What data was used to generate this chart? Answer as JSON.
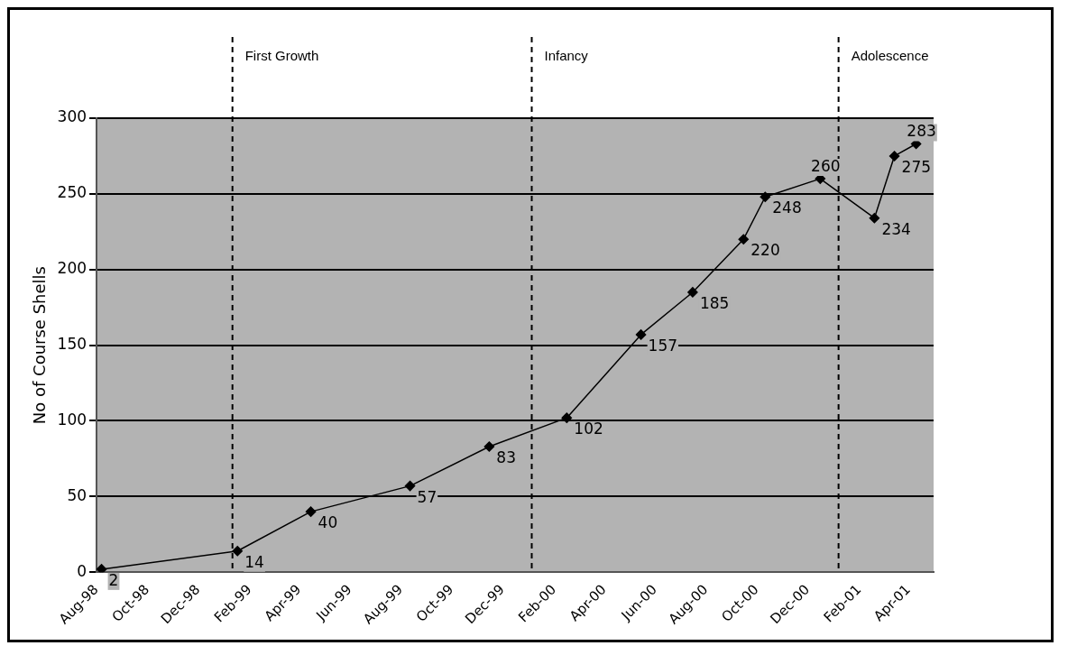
{
  "chart_data": {
    "type": "line",
    "ylabel": "No of Course Shells",
    "x": [
      "1998-08-07",
      "1999-01-17",
      "1999-04-15",
      "1999-08-12",
      "1999-11-15",
      "2000-02-16",
      "2000-05-15",
      "2000-07-16",
      "2000-09-15",
      "2000-10-11",
      "2000-12-16",
      "2001-02-19",
      "2001-03-15",
      "2001-04-10"
    ],
    "series": [
      {
        "color": "#000000",
        "values": [
          2,
          14,
          40,
          57,
          83,
          102,
          157,
          185,
          220,
          248,
          260,
          234,
          275,
          283
        ]
      }
    ],
    "xlim": [
      "1998-08",
      "2001-05"
    ],
    "xticks": [
      {
        "value": "1998-08",
        "label": "Aug-98"
      },
      {
        "value": "1998-10",
        "label": "Oct-98"
      },
      {
        "value": "1998-12",
        "label": "Dec-98"
      },
      {
        "value": "1999-02",
        "label": "Feb-99"
      },
      {
        "value": "1999-04",
        "label": "Apr-99"
      },
      {
        "value": "1999-06",
        "label": "Jun-99"
      },
      {
        "value": "1999-08",
        "label": "Aug-99"
      },
      {
        "value": "1999-10",
        "label": "Oct-99"
      },
      {
        "value": "1999-12",
        "label": "Dec-99"
      },
      {
        "value": "2000-02",
        "label": "Feb-00"
      },
      {
        "value": "2000-04",
        "label": "Apr-00"
      },
      {
        "value": "2000-06",
        "label": "Jun-00"
      },
      {
        "value": "2000-08",
        "label": "Aug-00"
      },
      {
        "value": "2000-10",
        "label": "Oct-00"
      },
      {
        "value": "2000-12",
        "label": "Dec-00"
      },
      {
        "value": "2001-02",
        "label": "Feb-01"
      },
      {
        "value": "2001-04",
        "label": "Apr-01"
      }
    ],
    "ylim": [
      0,
      300
    ],
    "yticks": [
      0,
      50,
      100,
      150,
      200,
      250,
      300
    ],
    "grid": "y",
    "marker": "diamond",
    "line_style": "solid",
    "data_labels": true,
    "legend": false,
    "ref_lines": [
      {
        "axis": "x",
        "value": "1999-01-11",
        "label": "First Growth",
        "line_style": "dashed",
        "color": "#000000"
      },
      {
        "axis": "x",
        "value": "2000-01-05",
        "label": "Infancy",
        "line_style": "dashed",
        "color": "#000000"
      },
      {
        "axis": "x",
        "value": "2001-01-07",
        "label": "Adolescence",
        "line_style": "dashed",
        "color": "#000000"
      }
    ]
  }
}
